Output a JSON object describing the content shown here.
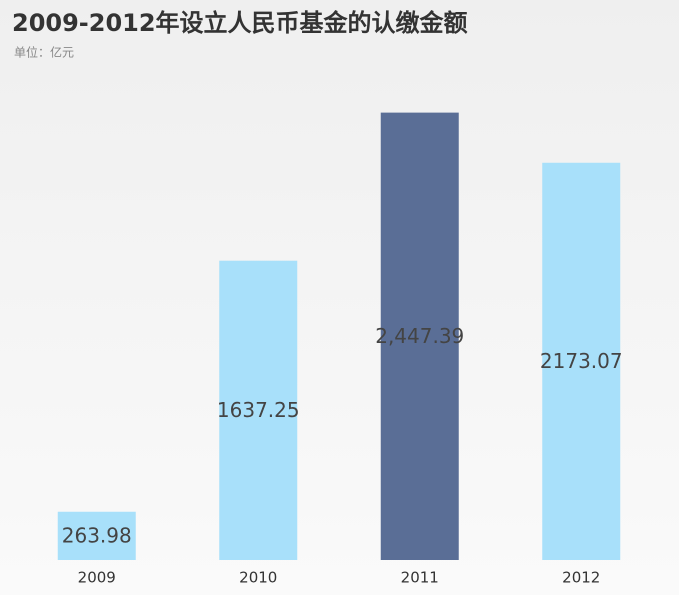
{
  "chart_data": {
    "type": "bar",
    "title": "2009-2012年设立人民币基金的认缴金额",
    "subtitle": "单位：亿元",
    "categories": [
      "2009",
      "2010",
      "2011",
      "2012"
    ],
    "values": [
      263.98,
      1637.25,
      2447.39,
      2173.07
    ],
    "value_labels": [
      "263.98",
      "1637.25",
      "2,447.39",
      "2173.07"
    ],
    "colors": [
      "#a8e0fa",
      "#a8e0fa",
      "#5a6e96",
      "#a8e0fa"
    ],
    "ylim": [
      0,
      2500
    ]
  }
}
